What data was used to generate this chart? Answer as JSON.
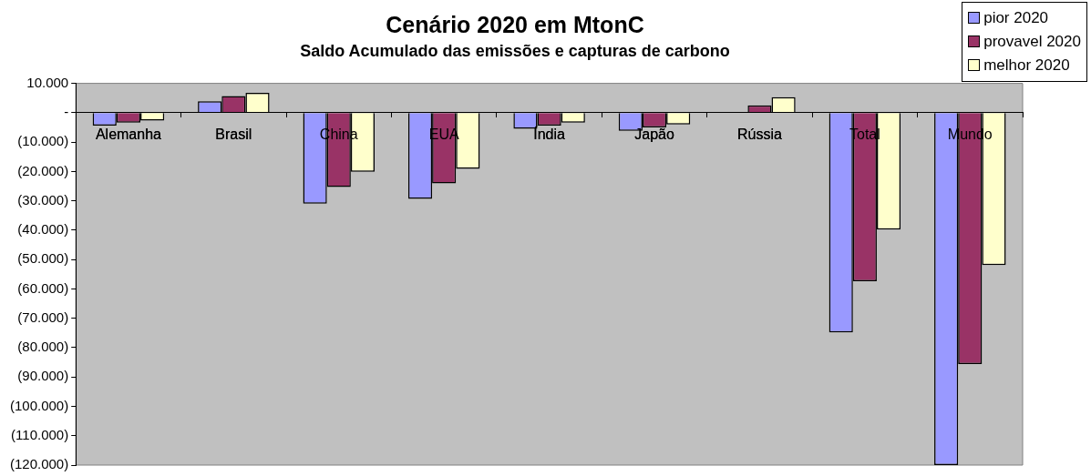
{
  "chart_data": {
    "type": "bar",
    "title": "Cenário 2020 em MtonC",
    "subtitle": "Saldo Acumulado das emissões e capturas de carbono",
    "categories": [
      "Alemanha",
      "Brasil",
      "China",
      "EUA",
      "Índia",
      "Japão",
      "Rússia",
      "Total",
      "Mundo"
    ],
    "series": [
      {
        "name": "pior 2020",
        "color": "#9999ff",
        "values": [
          -4400,
          3900,
          -31000,
          -29300,
          -5500,
          -6200,
          0,
          -74800,
          -120000
        ]
      },
      {
        "name": "provavel 2020",
        "color": "#993366",
        "values": [
          -3400,
          5700,
          -25300,
          -24100,
          -4400,
          -5000,
          2500,
          -57400,
          -85600
        ]
      },
      {
        "name": "melhor 2020",
        "color": "#ffffcc",
        "values": [
          -2700,
          6800,
          -20100,
          -19100,
          -3400,
          -4000,
          5300,
          -39800,
          -51900
        ]
      }
    ],
    "ylim": [
      -120000,
      10000
    ],
    "yticks": [
      {
        "value": 10000,
        "label": "10.000"
      },
      {
        "value": 0,
        "label": "-"
      },
      {
        "value": -10000,
        "label": "(10.000)"
      },
      {
        "value": -20000,
        "label": "(20.000)"
      },
      {
        "value": -30000,
        "label": "(30.000)"
      },
      {
        "value": -40000,
        "label": "(40.000)"
      },
      {
        "value": -50000,
        "label": "(50.000)"
      },
      {
        "value": -60000,
        "label": "(60.000)"
      },
      {
        "value": -70000,
        "label": "(70.000)"
      },
      {
        "value": -80000,
        "label": "(80.000)"
      },
      {
        "value": -90000,
        "label": "(90.000)"
      },
      {
        "value": -100000,
        "label": "(100.000)"
      },
      {
        "value": -110000,
        "label": "(110.000)"
      },
      {
        "value": -120000,
        "label": "(120.000)"
      }
    ],
    "grid": false,
    "legend": "top right"
  }
}
